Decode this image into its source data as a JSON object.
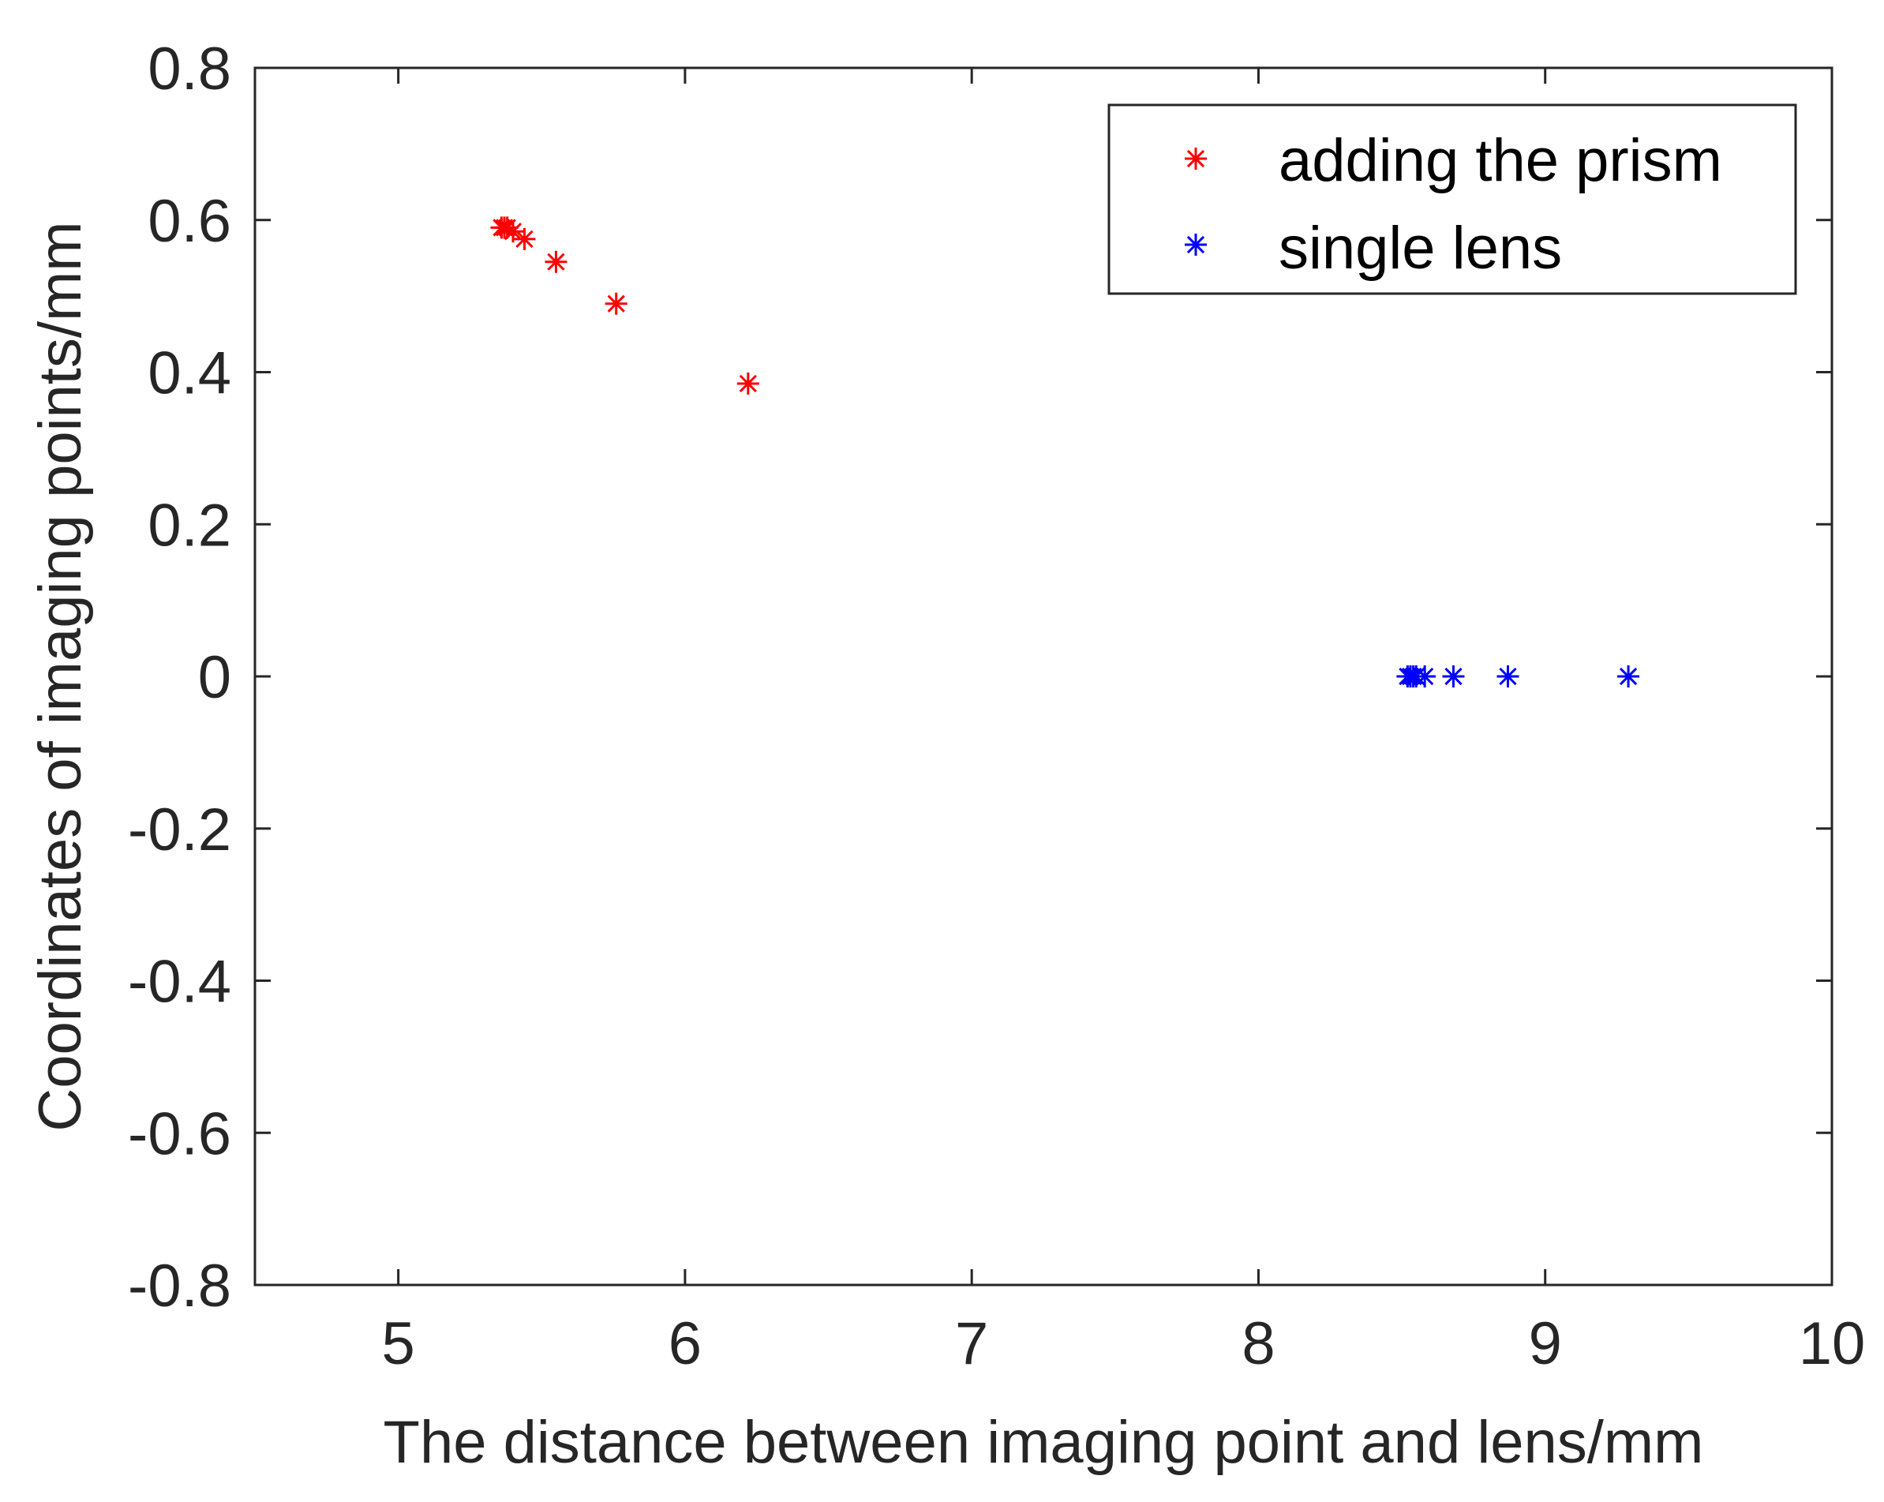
{
  "chart_data": {
    "type": "scatter",
    "title": "",
    "xlabel": "The distance between imaging point and lens/mm",
    "ylabel": "Coordinates of imaging points/mm",
    "xlim": [
      4.5,
      10
    ],
    "ylim": [
      -0.8,
      0.8
    ],
    "xticks": [
      5,
      6,
      7,
      8,
      9,
      10
    ],
    "xtick_labels": [
      "5",
      "6",
      "7",
      "8",
      "9",
      "10"
    ],
    "yticks": [
      -0.8,
      -0.6,
      -0.4,
      -0.2,
      0,
      0.2,
      0.4,
      0.6,
      0.8
    ],
    "ytick_labels": [
      "-0.8",
      "-0.6",
      "-0.4",
      "-0.2",
      "0",
      "0.2",
      "0.4",
      "0.6",
      "0.8"
    ],
    "grid": false,
    "legend_position": "top-right",
    "marker": "asterisk",
    "series": [
      {
        "name": "adding the prism",
        "color": "#ff0000",
        "x": [
          5.36,
          5.37,
          5.38,
          5.4,
          5.44,
          5.55,
          5.76,
          6.22
        ],
        "y": [
          0.59,
          0.59,
          0.59,
          0.585,
          0.575,
          0.545,
          0.49,
          0.385
        ]
      },
      {
        "name": "single lens",
        "color": "#0000ff",
        "x": [
          8.52,
          8.53,
          8.54,
          8.55,
          8.58,
          8.68,
          8.87,
          9.29
        ],
        "y": [
          0,
          0,
          0,
          0,
          0,
          0,
          0,
          0
        ]
      }
    ]
  }
}
